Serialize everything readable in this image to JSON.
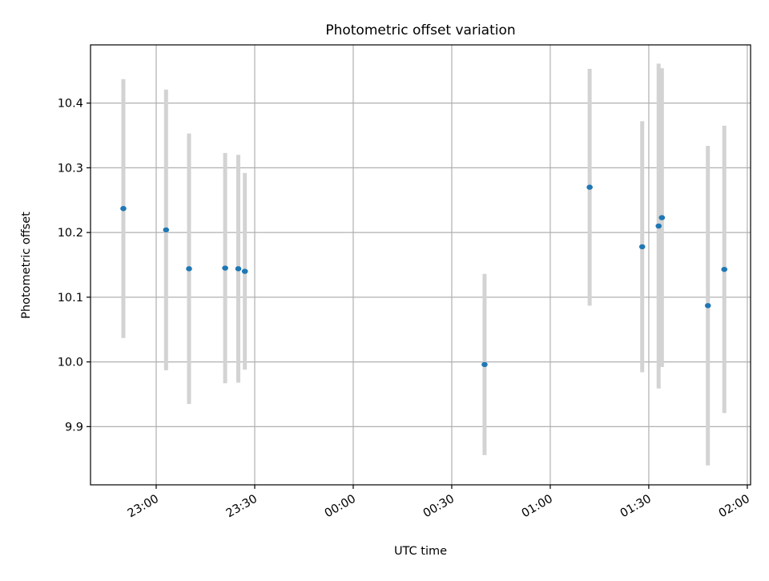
{
  "chart_data": {
    "type": "scatter",
    "title": "Photometric offset variation",
    "xlabel": "UTC time",
    "ylabel": "Photometric offset",
    "x_axis_kind": "time",
    "x_ticks": [
      "23:00",
      "23:30",
      "00:00",
      "00:30",
      "01:00",
      "01:30",
      "02:00"
    ],
    "xlim": [
      "22:40",
      "02:01"
    ],
    "y_ticks": [
      9.9,
      10.0,
      10.1,
      10.2,
      10.3,
      10.4
    ],
    "ylim": [
      9.81,
      10.49
    ],
    "grid": true,
    "marker_color": "#1f77b4",
    "errorbar_color": "#d3d3d3",
    "points": [
      {
        "x": "22:50",
        "y": 10.237,
        "err": 0.2
      },
      {
        "x": "23:03",
        "y": 10.204,
        "err": 0.217
      },
      {
        "x": "23:10",
        "y": 10.144,
        "err": 0.209
      },
      {
        "x": "23:21",
        "y": 10.145,
        "err": 0.178
      },
      {
        "x": "23:25",
        "y": 10.144,
        "err": 0.176
      },
      {
        "x": "23:27",
        "y": 10.14,
        "err": 0.152
      },
      {
        "x": "00:40",
        "y": 9.996,
        "err": 0.14
      },
      {
        "x": "01:12",
        "y": 10.27,
        "err": 0.183
      },
      {
        "x": "01:28",
        "y": 10.178,
        "err": 0.194
      },
      {
        "x": "01:33",
        "y": 10.21,
        "err": 0.251
      },
      {
        "x": "01:34",
        "y": 10.223,
        "err": 0.231
      },
      {
        "x": "01:48",
        "y": 10.087,
        "err": 0.247
      },
      {
        "x": "01:53",
        "y": 10.143,
        "err": 0.222
      }
    ]
  }
}
